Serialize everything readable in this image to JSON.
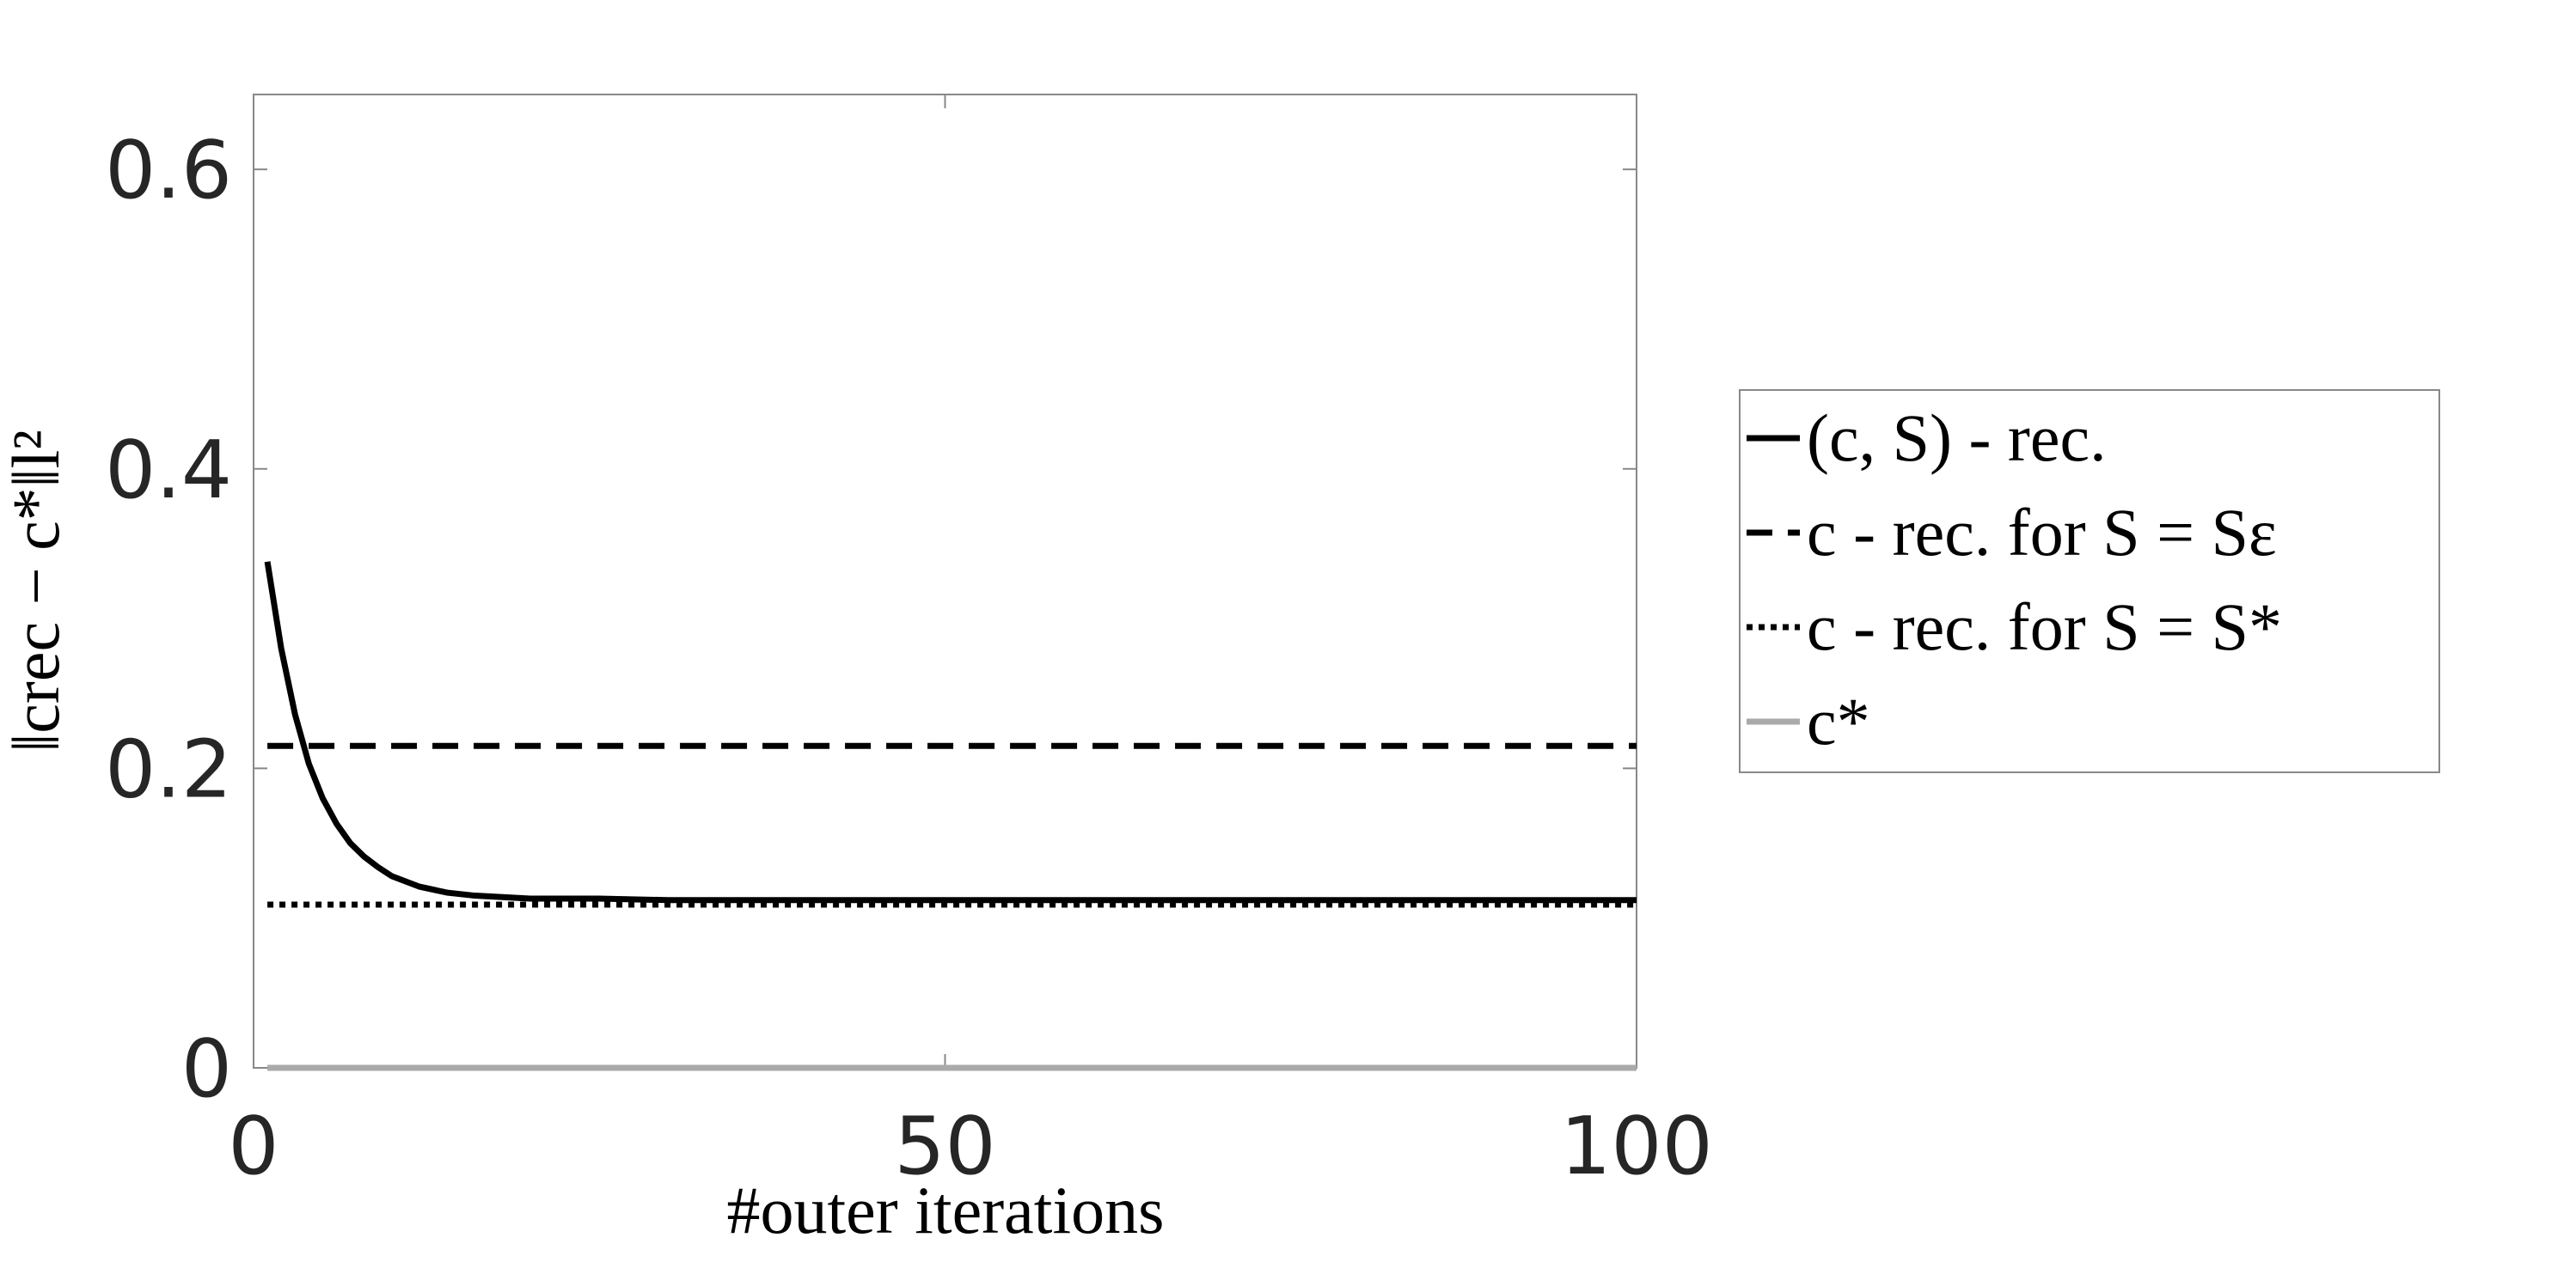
{
  "chart_data": {
    "type": "line",
    "xlabel": "#outer iterations",
    "ylabel": "‖crec − c*‖l²",
    "xlim": [
      0,
      100
    ],
    "ylim": [
      0,
      0.65
    ],
    "xticks": [
      0,
      50,
      100
    ],
    "yticks": [
      0,
      0.2,
      0.4,
      0.6
    ],
    "legend": "outside-right",
    "series": [
      {
        "name": "(c, S) - rec.",
        "color": "#000000",
        "dash": "solid",
        "x": [
          1,
          2,
          3,
          4,
          5,
          6,
          7,
          8,
          9,
          10,
          12,
          14,
          16,
          18,
          20,
          25,
          30,
          40,
          50,
          60,
          70,
          80,
          90,
          100
        ],
        "values": [
          0.338,
          0.28,
          0.236,
          0.203,
          0.18,
          0.163,
          0.15,
          0.141,
          0.134,
          0.128,
          0.121,
          0.117,
          0.115,
          0.114,
          0.113,
          0.113,
          0.112,
          0.112,
          0.112,
          0.112,
          0.112,
          0.112,
          0.112,
          0.112
        ]
      },
      {
        "name": "c - rec. for S = Sε",
        "color": "#000000",
        "dash": "dashed",
        "x": [
          1,
          100
        ],
        "values": [
          0.215,
          0.215
        ]
      },
      {
        "name": "c - rec. for S = S*",
        "color": "#000000",
        "dash": "dotted",
        "x": [
          1,
          100
        ],
        "values": [
          0.109,
          0.109
        ]
      },
      {
        "name": "c*",
        "color": "#aaaaaa",
        "dash": "solid",
        "x": [
          1,
          100
        ],
        "values": [
          0,
          0
        ]
      }
    ]
  }
}
